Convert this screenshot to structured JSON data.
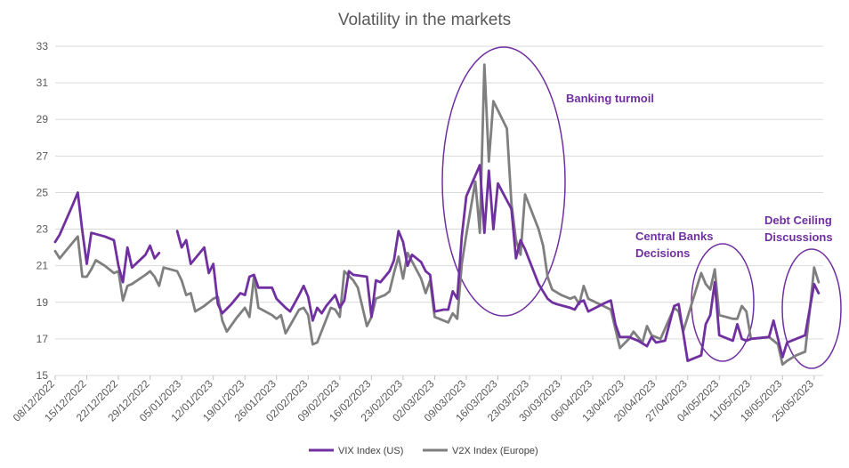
{
  "chart_data": {
    "type": "line",
    "title": "Volatility in the markets",
    "xlabel": "",
    "ylabel": "",
    "ylim": [
      15,
      33
    ],
    "yticks": [
      15,
      17,
      19,
      21,
      23,
      25,
      27,
      29,
      31,
      33
    ],
    "grid": true,
    "legend_position": "bottom",
    "x_tick_labels": [
      "08/12/2022",
      "15/12/2022",
      "22/12/2022",
      "29/12/2022",
      "05/01/2023",
      "12/01/2023",
      "19/01/2023",
      "26/01/2023",
      "02/02/2023",
      "09/02/2023",
      "16/02/2023",
      "23/02/2023",
      "02/03/2023",
      "09/03/2023",
      "16/03/2023",
      "23/03/2023",
      "30/03/2023",
      "06/04/2023",
      "13/04/2023",
      "20/04/2023",
      "27/04/2023",
      "04/05/2023",
      "11/05/2023",
      "18/05/2023",
      "25/05/2023"
    ],
    "series": [
      {
        "name": "VIX Index (US)",
        "color": "#7030A0",
        "points": [
          [
            "2022-12-08",
            22.3
          ],
          [
            "2022-12-09",
            22.7
          ],
          [
            "2022-12-12",
            24.4
          ],
          [
            "2022-12-13",
            25.0
          ],
          [
            "2022-12-14",
            22.9
          ],
          [
            "2022-12-15",
            21.1
          ],
          [
            "2022-12-16",
            22.8
          ],
          [
            "2022-12-19",
            22.6
          ],
          [
            "2022-12-21",
            22.4
          ],
          [
            "2022-12-22",
            21.0
          ],
          [
            "2022-12-23",
            20.1
          ],
          [
            "2022-12-24",
            22.0
          ],
          [
            "2022-12-25",
            20.9
          ],
          [
            "2022-12-28",
            21.6
          ],
          [
            "2022-12-29",
            22.1
          ],
          [
            "2022-12-30",
            21.4
          ],
          [
            "2022-12-31",
            21.7
          ],
          null,
          [
            "2023-01-04",
            22.9
          ],
          [
            "2023-01-05",
            22.0
          ],
          [
            "2023-01-06",
            22.4
          ],
          [
            "2023-01-07",
            21.1
          ],
          [
            "2023-01-08",
            21.4
          ],
          [
            "2023-01-10",
            22.0
          ],
          [
            "2023-01-11",
            20.6
          ],
          [
            "2023-01-12",
            21.1
          ],
          [
            "2023-01-13",
            18.9
          ],
          [
            "2023-01-14",
            18.4
          ],
          [
            "2023-01-16",
            18.9
          ],
          [
            "2023-01-18",
            19.5
          ],
          [
            "2023-01-19",
            19.4
          ],
          [
            "2023-01-20",
            20.4
          ],
          [
            "2023-01-21",
            20.5
          ],
          [
            "2023-01-22",
            19.8
          ],
          [
            "2023-01-25",
            19.8
          ],
          [
            "2023-01-26",
            19.2
          ],
          [
            "2023-01-28",
            18.7
          ],
          [
            "2023-01-29",
            18.5
          ],
          [
            "2023-01-31",
            19.4
          ],
          [
            "2023-02-01",
            19.9
          ],
          [
            "2023-02-02",
            19.3
          ],
          [
            "2023-02-03",
            18.0
          ],
          [
            "2023-02-04",
            18.7
          ],
          [
            "2023-02-05",
            18.4
          ],
          [
            "2023-02-06",
            18.8
          ],
          [
            "2023-02-08",
            19.4
          ],
          [
            "2023-02-09",
            18.7
          ],
          [
            "2023-02-10",
            19.1
          ],
          [
            "2023-02-11",
            20.7
          ],
          [
            "2023-02-12",
            20.5
          ],
          [
            "2023-02-15",
            20.4
          ],
          [
            "2023-02-16",
            18.2
          ],
          [
            "2023-02-17",
            20.2
          ],
          [
            "2023-02-18",
            20.1
          ],
          [
            "2023-02-20",
            20.7
          ],
          [
            "2023-02-21",
            21.3
          ],
          [
            "2023-02-22",
            22.9
          ],
          [
            "2023-02-23",
            22.3
          ],
          [
            "2023-02-24",
            21.0
          ],
          [
            "2023-02-25",
            21.6
          ],
          [
            "2023-02-27",
            21.2
          ],
          [
            "2023-02-28",
            20.7
          ],
          [
            "2023-03-01",
            20.5
          ],
          [
            "2023-03-02",
            18.5
          ],
          [
            "2023-03-04",
            18.6
          ],
          [
            "2023-03-05",
            18.6
          ],
          [
            "2023-03-06",
            19.6
          ],
          [
            "2023-03-07",
            19.2
          ],
          [
            "2023-03-08",
            22.6
          ],
          [
            "2023-03-09",
            24.8
          ],
          [
            "2023-03-12",
            26.5
          ],
          [
            "2023-03-13",
            22.8
          ],
          [
            "2023-03-14",
            26.2
          ],
          [
            "2023-03-15",
            23.0
          ],
          [
            "2023-03-16",
            25.5
          ],
          [
            "2023-03-19",
            24.1
          ],
          [
            "2023-03-20",
            21.4
          ],
          [
            "2023-03-21",
            22.4
          ],
          [
            "2023-03-22",
            21.9
          ],
          [
            "2023-03-25",
            20.0
          ],
          [
            "2023-03-27",
            19.2
          ],
          [
            "2023-03-28",
            19.0
          ],
          [
            "2023-03-29",
            18.9
          ],
          [
            "2023-04-01",
            18.7
          ],
          [
            "2023-04-02",
            18.6
          ],
          [
            "2023-04-03",
            19.0
          ],
          [
            "2023-04-04",
            19.1
          ],
          [
            "2023-04-05",
            18.5
          ],
          [
            "2023-04-09",
            19.0
          ],
          [
            "2023-04-10",
            19.1
          ],
          [
            "2023-04-11",
            17.8
          ],
          [
            "2023-04-12",
            17.1
          ],
          [
            "2023-04-14",
            17.1
          ],
          [
            "2023-04-16",
            16.9
          ],
          [
            "2023-04-18",
            16.6
          ],
          [
            "2023-04-19",
            17.1
          ],
          [
            "2023-04-20",
            16.8
          ],
          [
            "2023-04-22",
            16.9
          ],
          [
            "2023-04-24",
            18.8
          ],
          [
            "2023-04-25",
            18.9
          ],
          [
            "2023-04-27",
            15.8
          ],
          [
            "2023-04-30",
            16.1
          ],
          [
            "2023-05-01",
            17.8
          ],
          [
            "2023-05-02",
            18.3
          ],
          [
            "2023-05-03",
            20.1
          ],
          [
            "2023-05-04",
            17.2
          ],
          [
            "2023-05-06",
            17.0
          ],
          [
            "2023-05-07",
            16.9
          ],
          [
            "2023-05-08",
            17.8
          ],
          [
            "2023-05-09",
            17.0
          ],
          [
            "2023-05-10",
            16.9
          ],
          [
            "2023-05-11",
            17.0
          ],
          [
            "2023-05-15",
            17.1
          ],
          [
            "2023-05-16",
            18.0
          ],
          [
            "2023-05-18",
            16.0
          ],
          [
            "2023-05-19",
            16.8
          ],
          [
            "2023-05-21",
            17.0
          ],
          [
            "2023-05-23",
            17.2
          ],
          [
            "2023-05-25",
            20.0
          ],
          [
            "2023-05-26",
            19.5
          ]
        ]
      },
      {
        "name": "V2X Index (Europe)",
        "color": "#7F7F7F",
        "points": [
          [
            "2022-12-08",
            21.8
          ],
          [
            "2022-12-09",
            21.4
          ],
          [
            "2022-12-12",
            22.3
          ],
          [
            "2022-12-13",
            22.6
          ],
          [
            "2022-12-14",
            20.4
          ],
          [
            "2022-12-15",
            20.4
          ],
          [
            "2022-12-16",
            20.8
          ],
          [
            "2022-12-17",
            21.3
          ],
          [
            "2022-12-19",
            21.0
          ],
          [
            "2022-12-21",
            20.6
          ],
          [
            "2022-12-22",
            20.7
          ],
          [
            "2022-12-23",
            19.1
          ],
          [
            "2022-12-24",
            19.9
          ],
          [
            "2022-12-25",
            20.0
          ],
          [
            "2022-12-28",
            20.5
          ],
          [
            "2022-12-29",
            20.7
          ],
          [
            "2022-12-30",
            20.4
          ],
          [
            "2022-12-31",
            19.9
          ],
          [
            "2023-01-01",
            20.9
          ],
          [
            "2023-01-04",
            20.7
          ],
          [
            "2023-01-05",
            20.2
          ],
          [
            "2023-01-06",
            19.4
          ],
          [
            "2023-01-07",
            19.5
          ],
          [
            "2023-01-08",
            18.5
          ],
          [
            "2023-01-10",
            18.8
          ],
          [
            "2023-01-12",
            19.2
          ],
          [
            "2023-01-13",
            19.3
          ],
          [
            "2023-01-14",
            18.0
          ],
          [
            "2023-01-15",
            17.4
          ],
          [
            "2023-01-17",
            18.1
          ],
          [
            "2023-01-19",
            18.7
          ],
          [
            "2023-01-20",
            18.2
          ],
          [
            "2023-01-21",
            20.4
          ],
          [
            "2023-01-22",
            18.7
          ],
          [
            "2023-01-25",
            18.3
          ],
          [
            "2023-01-26",
            18.1
          ],
          [
            "2023-01-27",
            18.3
          ],
          [
            "2023-01-28",
            17.3
          ],
          [
            "2023-01-31",
            18.6
          ],
          [
            "2023-02-01",
            18.7
          ],
          [
            "2023-02-02",
            18.3
          ],
          [
            "2023-02-03",
            16.7
          ],
          [
            "2023-02-04",
            16.8
          ],
          [
            "2023-02-07",
            18.7
          ],
          [
            "2023-02-08",
            18.6
          ],
          [
            "2023-02-09",
            18.2
          ],
          [
            "2023-02-10",
            20.7
          ],
          [
            "2023-02-12",
            20.2
          ],
          [
            "2023-02-13",
            19.8
          ],
          [
            "2023-02-15",
            17.7
          ],
          [
            "2023-02-16",
            18.2
          ],
          [
            "2023-02-17",
            19.2
          ],
          [
            "2023-02-19",
            19.4
          ],
          [
            "2023-02-20",
            19.6
          ],
          [
            "2023-02-21",
            20.6
          ],
          [
            "2023-02-22",
            21.5
          ],
          [
            "2023-02-23",
            20.3
          ],
          [
            "2023-02-24",
            21.7
          ],
          [
            "2023-02-27",
            20.3
          ],
          [
            "2023-02-28",
            19.5
          ],
          [
            "2023-03-01",
            20.2
          ],
          [
            "2023-03-02",
            18.2
          ],
          [
            "2023-03-05",
            17.9
          ],
          [
            "2023-03-06",
            18.4
          ],
          [
            "2023-03-07",
            18.1
          ],
          [
            "2023-03-08",
            21.1
          ],
          [
            "2023-03-09",
            22.7
          ],
          [
            "2023-03-11",
            25.6
          ],
          [
            "2023-03-12",
            22.8
          ],
          [
            "2023-03-13",
            32.0
          ],
          [
            "2023-03-14",
            26.7
          ],
          [
            "2023-03-15",
            30.0
          ],
          [
            "2023-03-18",
            28.5
          ],
          [
            "2023-03-19",
            24.4
          ],
          [
            "2023-03-20",
            22.4
          ],
          [
            "2023-03-21",
            21.6
          ],
          [
            "2023-03-22",
            24.9
          ],
          [
            "2023-03-25",
            23.0
          ],
          [
            "2023-03-26",
            22.1
          ],
          [
            "2023-03-27",
            20.4
          ],
          [
            "2023-03-28",
            19.7
          ],
          [
            "2023-03-30",
            19.4
          ],
          [
            "2023-04-01",
            19.2
          ],
          [
            "2023-04-02",
            19.3
          ],
          [
            "2023-04-03",
            18.9
          ],
          [
            "2023-04-04",
            19.9
          ],
          [
            "2023-04-05",
            19.2
          ],
          [
            "2023-04-10",
            18.6
          ],
          [
            "2023-04-12",
            16.5
          ],
          [
            "2023-04-14",
            17.0
          ],
          [
            "2023-04-15",
            17.4
          ],
          [
            "2023-04-17",
            16.8
          ],
          [
            "2023-04-18",
            17.7
          ],
          [
            "2023-04-19",
            17.2
          ],
          [
            "2023-04-21",
            17.0
          ],
          [
            "2023-04-24",
            18.7
          ],
          [
            "2023-04-25",
            18.5
          ],
          [
            "2023-04-26",
            17.4
          ],
          [
            "2023-04-30",
            20.6
          ],
          [
            "2023-05-01",
            20.0
          ],
          [
            "2023-05-02",
            19.7
          ],
          [
            "2023-05-03",
            20.8
          ],
          [
            "2023-05-04",
            18.3
          ],
          [
            "2023-05-07",
            18.1
          ],
          [
            "2023-05-08",
            18.1
          ],
          [
            "2023-05-09",
            18.8
          ],
          [
            "2023-05-10",
            18.5
          ],
          [
            "2023-05-11",
            17.0
          ],
          [
            "2023-05-15",
            17.1
          ],
          [
            "2023-05-16",
            16.9
          ],
          [
            "2023-05-17",
            16.7
          ],
          [
            "2023-05-18",
            15.6
          ],
          [
            "2023-05-19",
            15.8
          ],
          [
            "2023-05-21",
            16.1
          ],
          [
            "2023-05-23",
            16.3
          ],
          [
            "2023-05-24",
            18.5
          ],
          [
            "2023-05-25",
            20.9
          ],
          [
            "2023-05-26",
            20.1
          ]
        ]
      }
    ],
    "annotations": [
      {
        "text": "Banking turmoil",
        "date": "2023-03-14"
      },
      {
        "lines": [
          "Central Banks",
          "Decisions"
        ],
        "date": "2023-05-03"
      },
      {
        "lines": [
          "Debt Ceiling",
          "Discussions"
        ],
        "date": "2023-05-25"
      }
    ]
  }
}
